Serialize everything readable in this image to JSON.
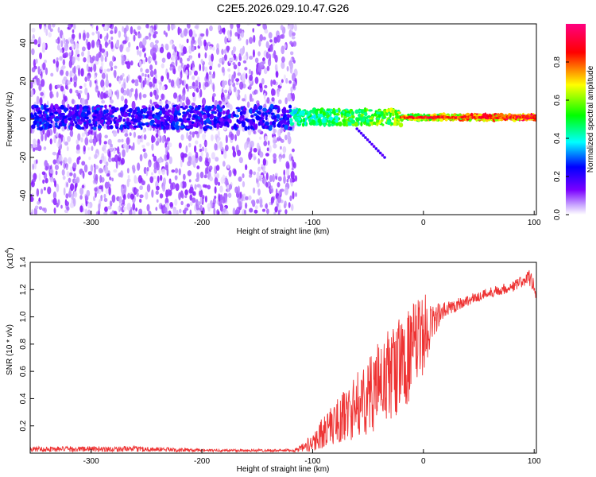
{
  "title": "C2E5.2026.029.10.47.G26",
  "chart_data": [
    {
      "type": "heatmap",
      "name": "spectrogram",
      "xlabel": "Height of straight line (km)",
      "ylabel": "Frequency (Hz)",
      "xlim": [
        -355,
        102
      ],
      "ylim": [
        -50,
        50
      ],
      "xticks": [
        -300,
        -200,
        -100,
        0,
        100
      ],
      "xtick_labels": [
        "-300",
        "-200",
        "-100",
        "0",
        "100"
      ],
      "yticks": [
        -40,
        -20,
        0,
        20,
        40
      ],
      "ytick_labels": [
        "-40",
        "-20",
        "0",
        "20",
        "40"
      ],
      "colorbar": {
        "label": "Normalized spectral amplitude",
        "range": [
          0,
          1
        ],
        "ticks": [
          0.0,
          0.2,
          0.4,
          0.6,
          0.8
        ],
        "tick_labels": [
          "0.0",
          "0.2",
          "0.4",
          "0.6",
          "0.8"
        ],
        "colormap": [
          "#ffffff",
          "#7a00ff",
          "#0000ff",
          "#00ffff",
          "#00ff00",
          "#ffff00",
          "#ff0000",
          "#ff0080"
        ]
      },
      "features": [
        {
          "name": "low-amplitude scatter",
          "x_range": [
            -355,
            -115
          ],
          "f_range": [
            -50,
            50
          ],
          "amplitude": 0.05
        },
        {
          "name": "signal band",
          "x_range": [
            -355,
            102
          ],
          "f_center": 1,
          "amplitude_start": 0.2,
          "amplitude_end": 0.95
        },
        {
          "name": "descending branch",
          "x_range": [
            -60,
            -35
          ],
          "f_range": [
            -5,
            -20
          ],
          "amplitude": 0.15
        }
      ]
    },
    {
      "type": "line",
      "name": "snr",
      "xlabel": "Height of straight line (km)",
      "ylabel": "SNR (10 * v/v)",
      "multiplier": "(x10",
      "multiplier_exp": "4",
      "multiplier_close": ")",
      "xlim": [
        -355,
        102
      ],
      "ylim": [
        0,
        1.4
      ],
      "xticks": [
        -300,
        -200,
        -100,
        0,
        100
      ],
      "xtick_labels": [
        "-300",
        "-200",
        "-100",
        "0",
        "100"
      ],
      "yticks": [
        0.2,
        0.4,
        0.6,
        0.8,
        1.0,
        1.2,
        1.4
      ],
      "ytick_labels": [
        "0.2",
        "0.4",
        "0.6",
        "0.8",
        "1.0",
        "1.2",
        "1.4"
      ],
      "color": "#ee3333",
      "x": [
        -355,
        -300,
        -250,
        -200,
        -150,
        -120,
        -110,
        -100,
        -90,
        -80,
        -70,
        -60,
        -50,
        -40,
        -30,
        -20,
        -10,
        0,
        10,
        20,
        30,
        40,
        50,
        60,
        70,
        80,
        90,
        95,
        100,
        102
      ],
      "y": [
        0.03,
        0.03,
        0.03,
        0.02,
        0.02,
        0.02,
        0.03,
        0.08,
        0.16,
        0.22,
        0.28,
        0.35,
        0.42,
        0.5,
        0.58,
        0.65,
        0.75,
        0.88,
        0.98,
        1.05,
        1.09,
        1.12,
        1.15,
        1.18,
        1.2,
        1.22,
        1.26,
        1.3,
        1.22,
        1.15
      ],
      "noise_amplitude": [
        0.02,
        0.02,
        0.02,
        0.01,
        0.01,
        0.01,
        0.03,
        0.08,
        0.12,
        0.16,
        0.2,
        0.24,
        0.28,
        0.32,
        0.36,
        0.36,
        0.34,
        0.3,
        0.12,
        0.06,
        0.05,
        0.04,
        0.04,
        0.04,
        0.04,
        0.04,
        0.05,
        0.06,
        0.06,
        0.06
      ]
    }
  ]
}
